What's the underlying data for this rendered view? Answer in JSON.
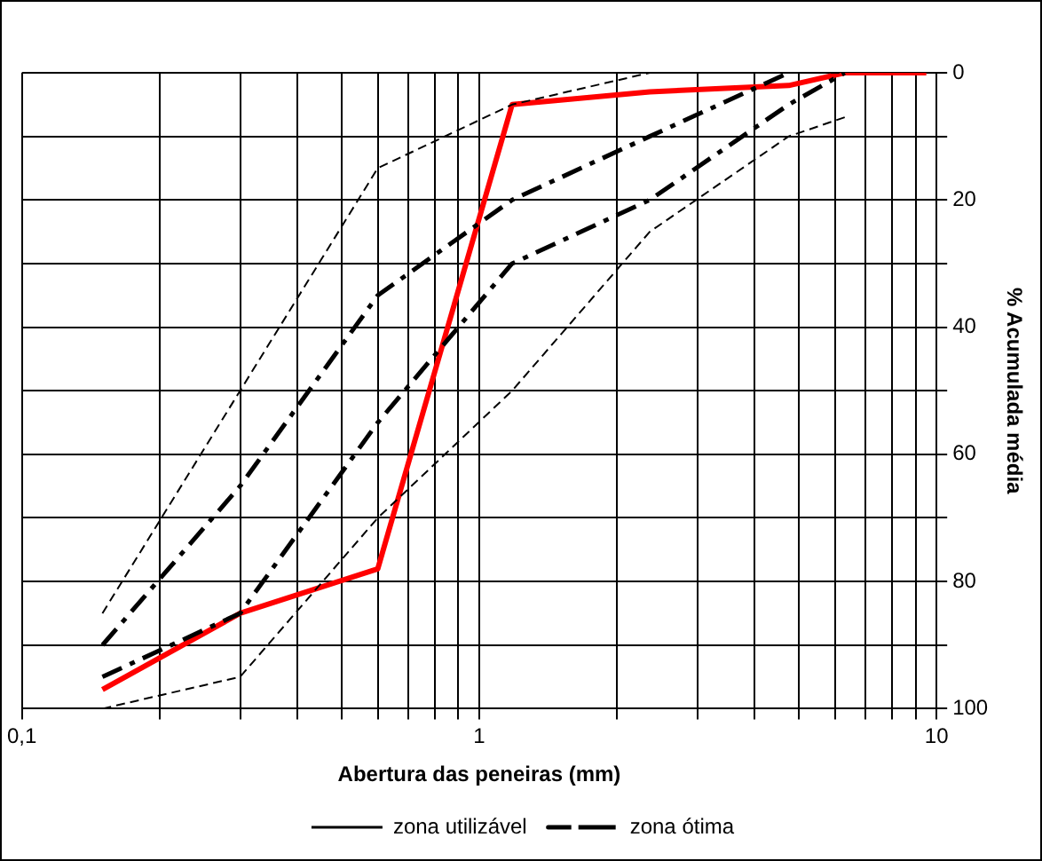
{
  "chart_data": {
    "type": "line",
    "xlabel": "Abertura das peneiras (mm)",
    "ylabel": "% Acumulada média",
    "x": [
      0.15,
      0.3,
      0.6,
      1.18,
      2.36,
      4.75,
      6.3,
      9.5
    ],
    "series": [
      {
        "name": "zona utilizável",
        "color": "#000000",
        "line_style": "dashed",
        "values": [
          85,
          50,
          15,
          5,
          0,
          0,
          0,
          null
        ]
      },
      {
        "color": "#000000",
        "line_style": "dashed",
        "values": [
          100,
          95,
          70,
          50,
          25,
          10,
          7,
          null
        ]
      },
      {
        "name": "zona ótima",
        "color": "#000000",
        "line_style": "dashdot",
        "values": [
          90,
          65,
          35,
          20,
          10,
          0,
          null,
          null
        ]
      },
      {
        "color": "#000000",
        "line_style": "dashdot",
        "values": [
          95,
          85,
          55,
          30,
          20,
          5,
          0,
          null
        ]
      },
      {
        "color": "#ff0000",
        "line_style": "solid",
        "values": [
          97,
          85,
          78,
          5,
          3,
          2,
          0,
          0
        ]
      }
    ],
    "log": "x",
    "xlim": [
      0.1,
      10
    ],
    "xticks": [
      {
        "value": 0.1,
        "label": "0,1"
      },
      {
        "value": 0.2,
        "label": null
      },
      {
        "value": 0.3,
        "label": null
      },
      {
        "value": 0.4,
        "label": null
      },
      {
        "value": 0.5,
        "label": null
      },
      {
        "value": 0.6,
        "label": null
      },
      {
        "value": 0.7,
        "label": null
      },
      {
        "value": 0.8,
        "label": null
      },
      {
        "value": 0.9,
        "label": null
      },
      1,
      {
        "value": 2,
        "label": null
      },
      {
        "value": 3,
        "label": null
      },
      {
        "value": 4,
        "label": null
      },
      {
        "value": 5,
        "label": null
      },
      {
        "value": 6,
        "label": null
      },
      {
        "value": 7,
        "label": null
      },
      {
        "value": 8,
        "label": null
      },
      {
        "value": 9,
        "label": null
      },
      10
    ],
    "ylim": [
      100,
      0
    ],
    "yticks": [
      0,
      {
        "value": 10,
        "label": null
      },
      20,
      {
        "value": 30,
        "label": null
      },
      40,
      {
        "value": 50,
        "label": null
      },
      60,
      {
        "value": 70,
        "label": null
      },
      80,
      {
        "value": 90,
        "label": null
      },
      100
    ],
    "grid": true,
    "legend": "bottom",
    "marker": "none"
  }
}
